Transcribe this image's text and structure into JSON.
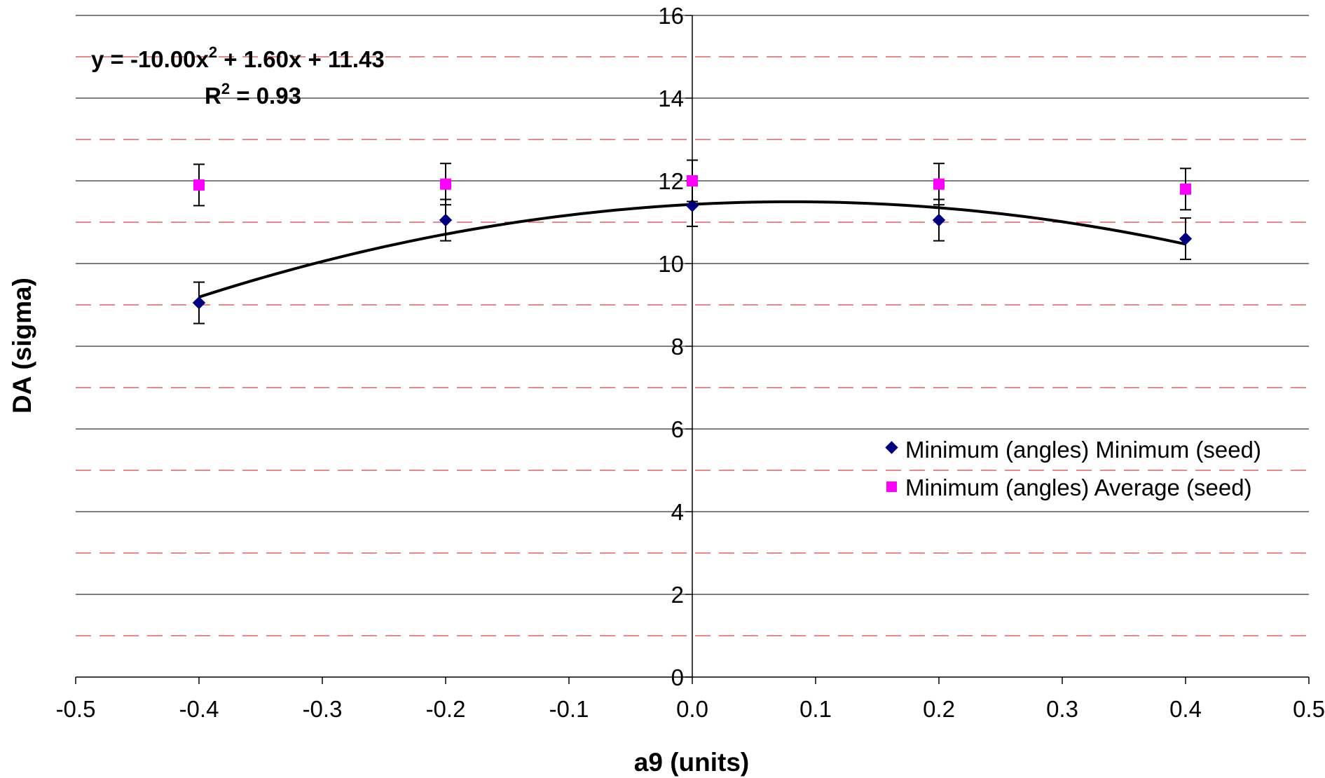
{
  "chart_data": {
    "type": "scatter",
    "xlabel": "a9 (units)",
    "ylabel": "DA (sigma)",
    "xlim": [
      -0.5,
      0.5
    ],
    "ylim": [
      0,
      16
    ],
    "x_ticks": [
      -0.5,
      -0.4,
      -0.3,
      -0.2,
      -0.1,
      0.0,
      0.1,
      0.2,
      0.3,
      0.4,
      0.5
    ],
    "x_tick_labels": [
      "-0.5",
      "-0.4",
      "-0.3",
      "-0.2",
      "-0.1",
      "0.0",
      "0.1",
      "0.2",
      "0.3",
      "0.4",
      "0.5"
    ],
    "y_ticks": [
      0,
      2,
      4,
      6,
      8,
      10,
      12,
      14,
      16
    ],
    "y_tick_labels": [
      "0",
      "2",
      "4",
      "6",
      "8",
      "10",
      "12",
      "14",
      "16"
    ],
    "reference_lines_y": [
      1,
      3,
      5,
      7,
      9,
      11,
      13,
      15
    ],
    "reference_line_color": "#e06060",
    "grid": true,
    "legend_position": "right",
    "series": [
      {
        "name": "Minimum (angles) Minimum (seed)",
        "marker": "diamond",
        "color": "#000080",
        "x": [
          -0.4,
          -0.2,
          0.0,
          0.2,
          0.4
        ],
        "y": [
          9.05,
          11.05,
          11.4,
          11.05,
          10.6
        ],
        "error": 0.5
      },
      {
        "name": "Minimum (angles) Average (seed)",
        "marker": "square",
        "color": "#ff00ff",
        "x": [
          -0.4,
          -0.2,
          0.0,
          0.2,
          0.4
        ],
        "y": [
          11.9,
          11.92,
          12.0,
          11.92,
          11.8
        ],
        "error": 0.5
      }
    ],
    "trendline": {
      "type": "polynomial",
      "coefficients": [
        -10.0,
        1.6,
        11.43
      ],
      "x_range": [
        -0.4,
        0.4
      ],
      "color": "#000000",
      "equation_label": {
        "prefix": "y = -10.00x",
        "superscript": "2",
        "suffix": " + 1.60x + 11.43"
      },
      "r2_label": {
        "prefix": "R",
        "superscript": "2",
        "suffix": " = 0.93"
      }
    }
  }
}
